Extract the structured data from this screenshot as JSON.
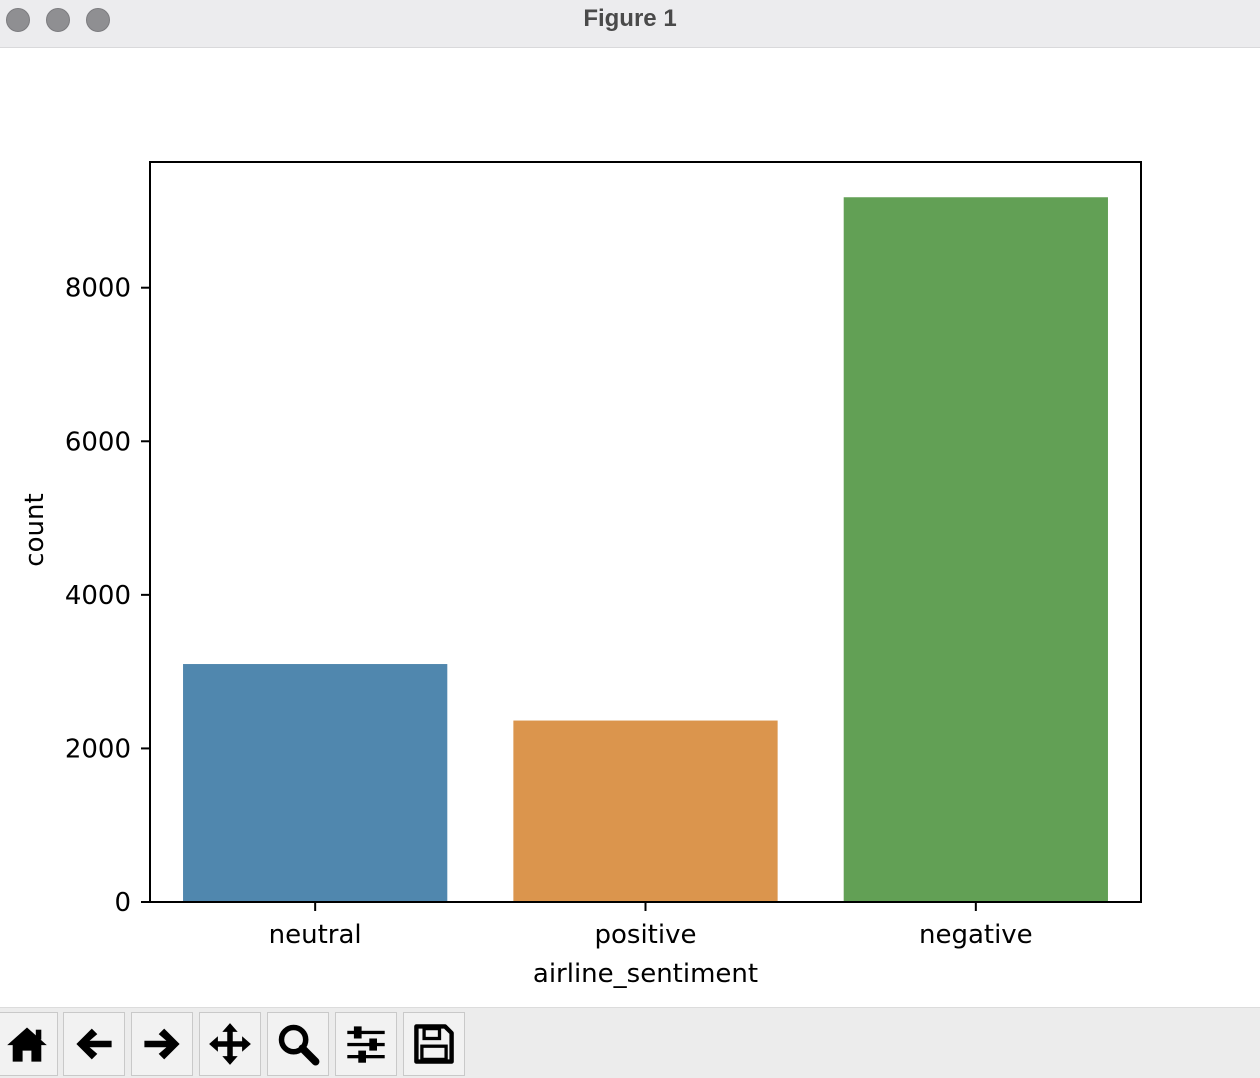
{
  "window": {
    "title": "Figure 1"
  },
  "toolbar": {
    "buttons": [
      {
        "name": "home-button",
        "icon": "home-icon"
      },
      {
        "name": "back-button",
        "icon": "arrow-left-icon"
      },
      {
        "name": "forward-button",
        "icon": "arrow-right-icon"
      },
      {
        "name": "pan-button",
        "icon": "move-icon"
      },
      {
        "name": "zoom-button",
        "icon": "magnifier-icon"
      },
      {
        "name": "configure-subplots-button",
        "icon": "sliders-icon"
      },
      {
        "name": "save-button",
        "icon": "floppy-disk-icon"
      }
    ]
  },
  "chart_data": {
    "type": "bar",
    "title": "",
    "xlabel": "airline_sentiment",
    "ylabel": "count",
    "categories": [
      "neutral",
      "positive",
      "negative"
    ],
    "values": [
      3099,
      2363,
      9178
    ],
    "colors": [
      "#5087ae",
      "#db954d",
      "#62a055"
    ],
    "ylim": [
      0,
      9637
    ],
    "yticks": [
      0,
      2000,
      4000,
      6000,
      8000
    ],
    "ytick_labels": [
      "0",
      "2000",
      "4000",
      "6000",
      "8000"
    ],
    "grid": false,
    "legend": "none"
  }
}
